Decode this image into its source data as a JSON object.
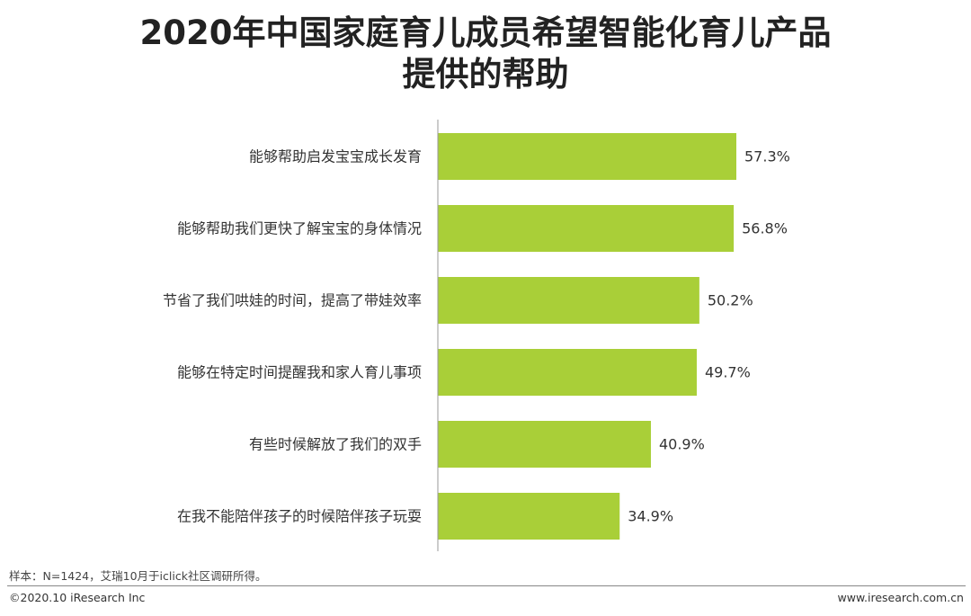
{
  "title_line1": "2020年中国家庭育儿成员希望智能化育儿产品",
  "title_line2": "提供的帮助",
  "chart_data": {
    "type": "bar",
    "orientation": "horizontal",
    "title": "2020年中国家庭育儿成员希望智能化育儿产品提供的帮助",
    "categories": [
      "能够帮助启发宝宝成长发育",
      "能够帮助我们更快了解宝宝的身体情况",
      "节省了我们哄娃的时间，提高了带娃效率",
      "能够在特定时间提醒我和家人育儿事项",
      "有些时候解放了我们的双手",
      "在我不能陪伴孩子的时候陪伴孩子玩耍"
    ],
    "values": [
      57.3,
      56.8,
      50.2,
      49.7,
      40.9,
      34.9
    ],
    "value_labels": [
      "57.3%",
      "56.8%",
      "50.2%",
      "49.7%",
      "40.9%",
      "34.9%"
    ],
    "xlim": [
      0,
      100
    ],
    "grid": false,
    "legend": "none",
    "bar_color": "#a9cf38"
  },
  "footer": {
    "sample": "样本：N=1424，艾瑞10月于iclick社区调研所得。",
    "copyright": "©2020.10 iResearch Inc",
    "website": "www.iresearch.com.cn"
  }
}
